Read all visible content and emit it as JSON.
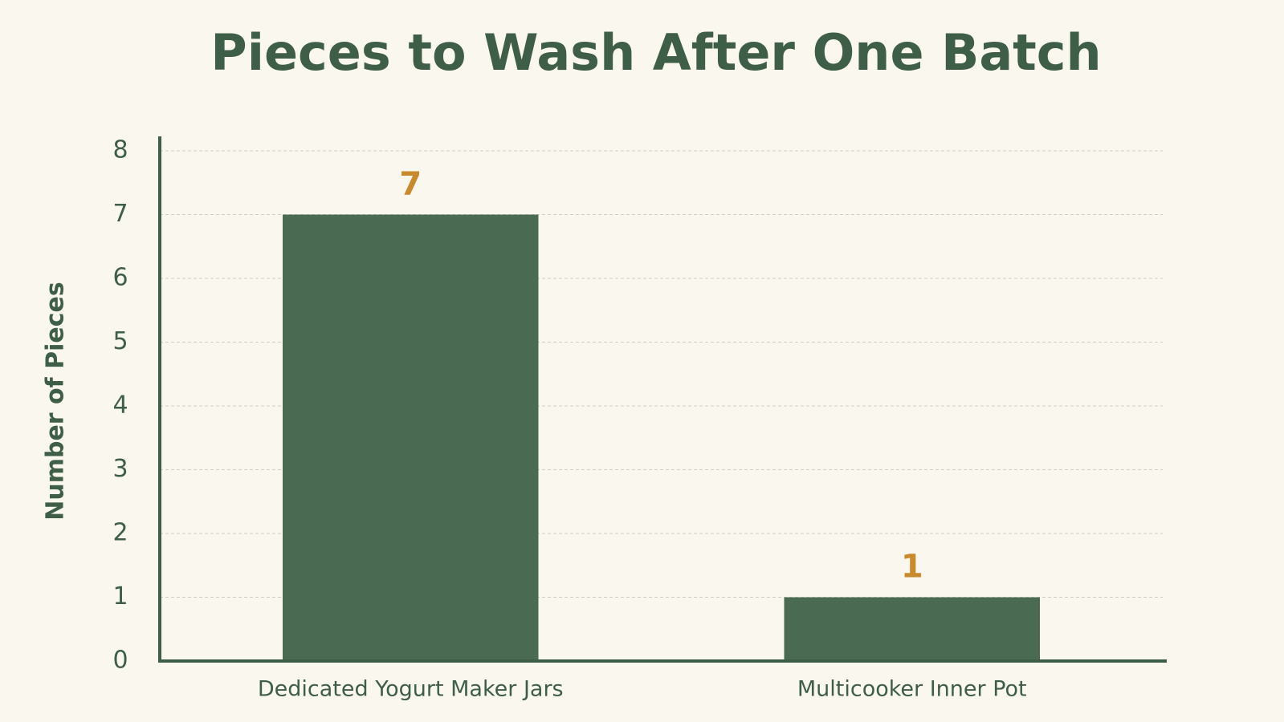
{
  "chart_data": {
    "type": "bar",
    "title": "Pieces to Wash After One Batch",
    "y_label": "Number of Pieces",
    "categories": [
      "Dedicated Yogurt Maker Jars",
      "Multicooker Inner Pot"
    ],
    "values": [
      7,
      1
    ],
    "color": "#4a6b52",
    "value_label_color": "#c98a2e",
    "ylim": [
      0,
      8
    ],
    "yticks": [
      0,
      1,
      2,
      3,
      4,
      5,
      6,
      7,
      8
    ],
    "grid": true
  }
}
